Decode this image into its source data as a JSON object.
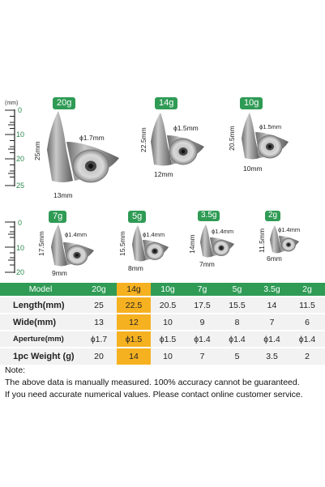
{
  "top_ruler": {
    "unit": "(mm)",
    "ticks": [
      "0",
      "10",
      "20",
      "25"
    ]
  },
  "bottom_ruler": {
    "ticks": [
      "0",
      "10",
      "20"
    ]
  },
  "products": [
    {
      "weight": "20g",
      "height": "25mm",
      "aperture": "ϕ1.7mm",
      "width": "13mm"
    },
    {
      "weight": "14g",
      "height": "22.5mm",
      "aperture": "ϕ1.5mm",
      "width": "12mm"
    },
    {
      "weight": "10g",
      "height": "20.5mm",
      "aperture": "ϕ1.5mm",
      "width": "10mm"
    },
    {
      "weight": "7g",
      "height": "17.5mm",
      "aperture": "ϕ1.4mm",
      "width": "9mm"
    },
    {
      "weight": "5g",
      "height": "15.5mm",
      "aperture": "ϕ1.4mm",
      "width": "8mm"
    },
    {
      "weight": "3.5g",
      "height": "14mm",
      "aperture": "ϕ1.4mm",
      "width": "7mm"
    },
    {
      "weight": "2g",
      "height": "11.5mm",
      "aperture": "ϕ1.4mm",
      "width": "6mm"
    }
  ],
  "table": {
    "header": [
      "Model",
      "20g",
      "14g",
      "10g",
      "7g",
      "5g",
      "3.5g",
      "2g"
    ],
    "highlight_column": 2,
    "highlight_color": "#f6b120",
    "header_color": "#2f9b55",
    "rows": [
      [
        "Length(mm)",
        "25",
        "22.5",
        "20.5",
        "17.5",
        "15.5",
        "14",
        "11.5"
      ],
      [
        "Wide(mm)",
        "13",
        "12",
        "10",
        "9",
        "8",
        "7",
        "6"
      ],
      [
        "Aperture(mm)",
        "ϕ1.7",
        "ϕ1.5",
        "ϕ1.5",
        "ϕ1.4",
        "ϕ1.4",
        "ϕ1.4",
        "ϕ1.4"
      ],
      [
        "1pc Weight (g)",
        "20",
        "14",
        "10",
        "7",
        "5",
        "3.5",
        "2"
      ]
    ]
  },
  "note": {
    "title": "Note:",
    "line1": "The above data is manually measured. 100% accuracy cannot be guaranteed.",
    "line2": "If you need accurate numerical values. Please contact online customer service."
  }
}
